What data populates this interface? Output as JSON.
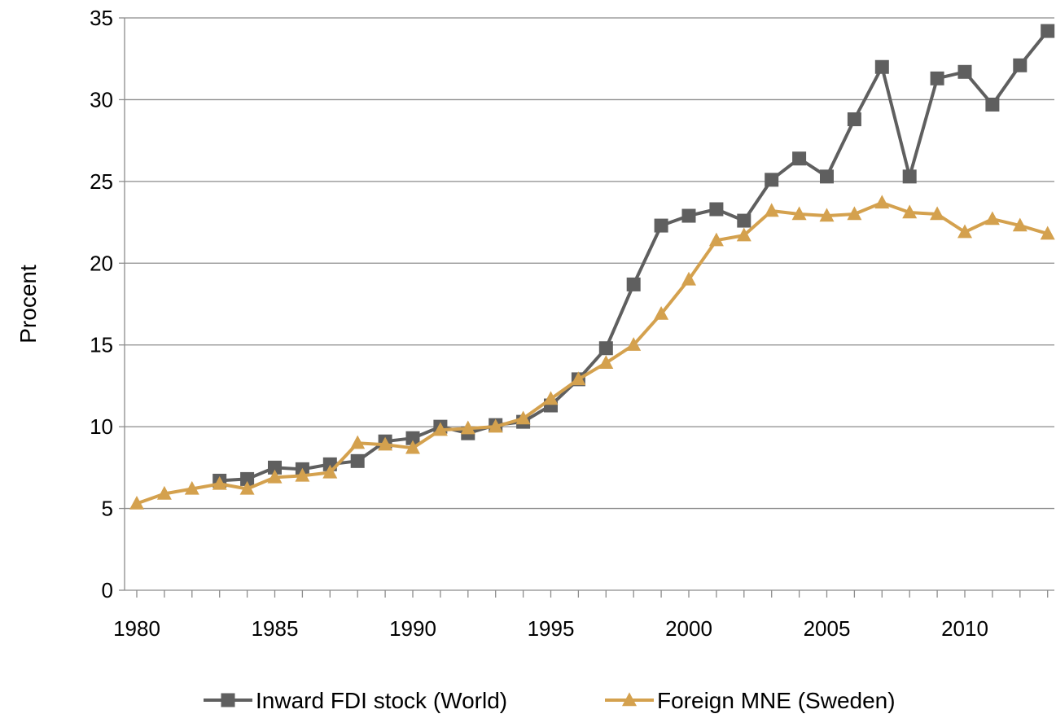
{
  "chart_data": {
    "type": "line",
    "title": "",
    "xlabel": "",
    "ylabel": "Procent",
    "ylim": [
      0,
      35
    ],
    "yticks": [
      0,
      5,
      10,
      15,
      20,
      25,
      30,
      35
    ],
    "xlim": [
      1980,
      2013
    ],
    "xticks_labeled": [
      1980,
      1985,
      1990,
      1995,
      2000,
      2005,
      2010
    ],
    "grid": "horizontal",
    "legend_position": "bottom",
    "x": [
      1980,
      1981,
      1982,
      1983,
      1984,
      1985,
      1986,
      1987,
      1988,
      1989,
      1990,
      1991,
      1992,
      1993,
      1994,
      1995,
      1996,
      1997,
      1998,
      1999,
      2000,
      2001,
      2002,
      2003,
      2004,
      2005,
      2006,
      2007,
      2008,
      2009,
      2010,
      2011,
      2012,
      2013
    ],
    "series": [
      {
        "name": "Inward FDI stock (World)",
        "color": "#5f5f5f",
        "marker": "square",
        "values": [
          null,
          null,
          null,
          6.7,
          6.8,
          7.5,
          7.4,
          7.7,
          7.9,
          9.1,
          9.3,
          10.0,
          9.6,
          10.1,
          10.3,
          11.3,
          12.9,
          14.8,
          18.7,
          22.3,
          22.9,
          23.3,
          22.6,
          25.1,
          26.4,
          25.3,
          28.8,
          32.0,
          25.3,
          31.3,
          31.7,
          29.7,
          32.1,
          34.2
        ]
      },
      {
        "name": "Foreign MNE (Sweden)",
        "color": "#d4a14e",
        "marker": "triangle",
        "values": [
          5.3,
          5.9,
          6.2,
          6.5,
          6.2,
          6.9,
          7.0,
          7.2,
          9.0,
          8.9,
          8.7,
          9.8,
          9.9,
          10.0,
          10.5,
          11.7,
          12.9,
          13.9,
          15.0,
          16.9,
          19.0,
          21.4,
          21.7,
          23.2,
          23.0,
          22.9,
          23.0,
          23.7,
          23.1,
          23.0,
          21.9,
          22.7,
          22.3,
          21.8
        ]
      }
    ]
  }
}
